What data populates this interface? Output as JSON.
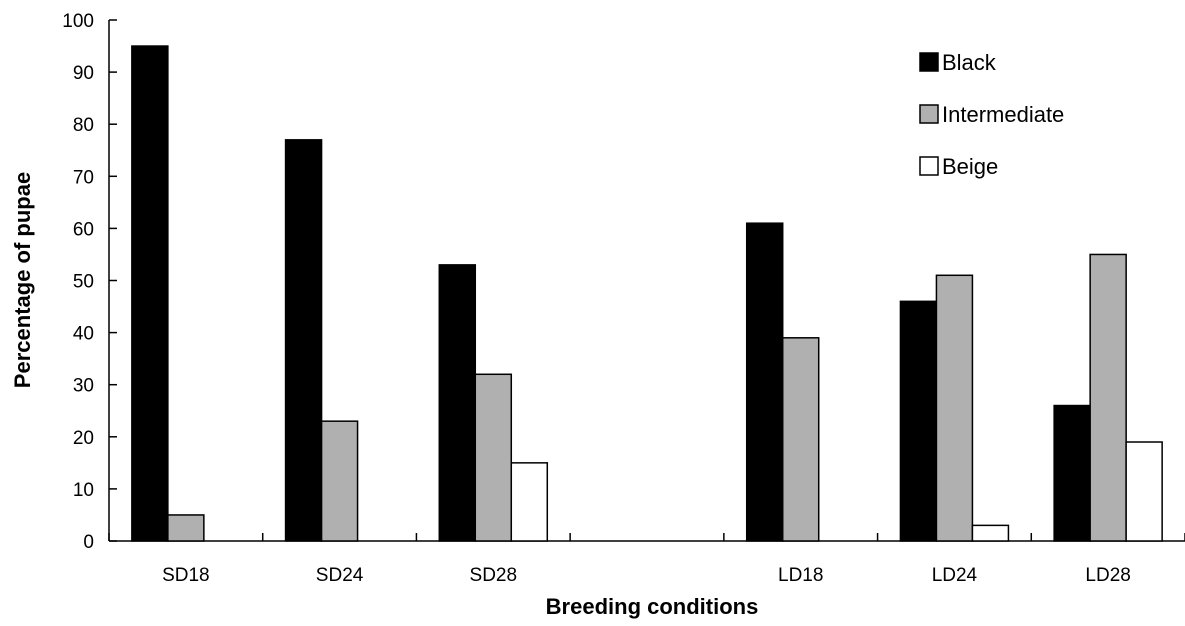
{
  "chart_data": {
    "type": "bar",
    "title": "",
    "xlabel": "Breeding conditions",
    "ylabel": "Percentage of pupae",
    "ylim": [
      0,
      100
    ],
    "yticks": [
      0,
      10,
      20,
      30,
      40,
      50,
      60,
      70,
      80,
      90,
      100
    ],
    "categories": [
      "SD18",
      "SD24",
      "SD28",
      "",
      "LD18",
      "LD24",
      "LD28"
    ],
    "series": [
      {
        "name": "Black",
        "color": "#000000",
        "values": [
          95,
          77,
          53,
          null,
          61,
          46,
          26
        ]
      },
      {
        "name": "Intermediate",
        "color": "#b0b0b0",
        "values": [
          5,
          23,
          32,
          null,
          39,
          51,
          55
        ]
      },
      {
        "name": "Beige",
        "color": "#ffffff",
        "values": [
          0,
          0,
          15,
          null,
          0,
          3,
          19
        ]
      }
    ],
    "legend": {
      "position": "top-right"
    },
    "grid": false
  }
}
